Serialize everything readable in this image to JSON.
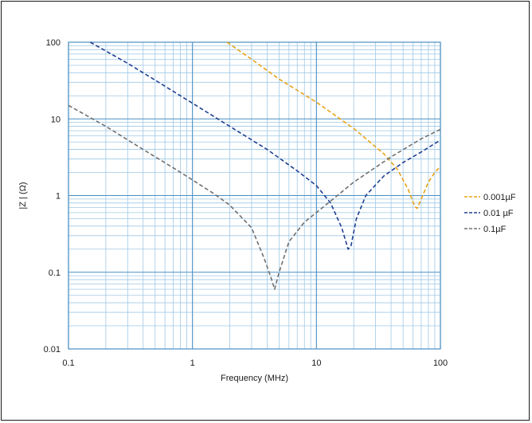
{
  "chart_data": {
    "type": "line",
    "title": "",
    "xlabel": "Frequency (MHz)",
    "ylabel": "|Z | (Ω)",
    "x_scale": "log",
    "y_scale": "log",
    "xlim": [
      0.1,
      100
    ],
    "ylim": [
      0.01,
      100
    ],
    "x_tick_labels": [
      "0.1",
      "1",
      "10",
      "100"
    ],
    "y_tick_labels": [
      "100",
      "10",
      "1",
      "0.1",
      "0.01"
    ],
    "grid": true,
    "legend_position": "right",
    "series": [
      {
        "name": "0.001µF",
        "color": "#e8a317",
        "style": "dashed",
        "points": [
          [
            1.9,
            100
          ],
          [
            3,
            60
          ],
          [
            5,
            33
          ],
          [
            10,
            16.5
          ],
          [
            20,
            7.5
          ],
          [
            35,
            3.5
          ],
          [
            45,
            2.2
          ],
          [
            55,
            1.2
          ],
          [
            62,
            0.72
          ],
          [
            65,
            0.68
          ],
          [
            70,
            0.9
          ],
          [
            80,
            1.5
          ],
          [
            90,
            2.0
          ],
          [
            100,
            2.4
          ]
        ]
      },
      {
        "name": "0.01 µF",
        "color": "#1f3f8f",
        "style": "dashed",
        "points": [
          [
            0.15,
            100
          ],
          [
            0.3,
            53
          ],
          [
            0.5,
            32
          ],
          [
            1,
            16
          ],
          [
            2,
            8
          ],
          [
            4,
            4
          ],
          [
            7,
            2.1
          ],
          [
            10,
            1.35
          ],
          [
            13,
            0.8
          ],
          [
            16,
            0.38
          ],
          [
            18,
            0.2
          ],
          [
            19,
            0.22
          ],
          [
            21,
            0.5
          ],
          [
            25,
            1.0
          ],
          [
            35,
            1.8
          ],
          [
            50,
            2.7
          ],
          [
            70,
            3.7
          ],
          [
            100,
            5.3
          ]
        ]
      },
      {
        "name": "0.1µF",
        "color": "#707070",
        "style": "dashed",
        "points": [
          [
            0.1,
            15
          ],
          [
            0.2,
            8
          ],
          [
            0.4,
            4
          ],
          [
            0.7,
            2.3
          ],
          [
            1,
            1.6
          ],
          [
            1.5,
            1.05
          ],
          [
            2,
            0.75
          ],
          [
            3,
            0.38
          ],
          [
            3.8,
            0.15
          ],
          [
            4.3,
            0.085
          ],
          [
            4.6,
            0.06
          ],
          [
            5,
            0.1
          ],
          [
            6,
            0.25
          ],
          [
            8,
            0.45
          ],
          [
            10,
            0.6
          ],
          [
            20,
            1.5
          ],
          [
            40,
            3.2
          ],
          [
            70,
            5.5
          ],
          [
            100,
            7.3
          ]
        ]
      }
    ]
  }
}
